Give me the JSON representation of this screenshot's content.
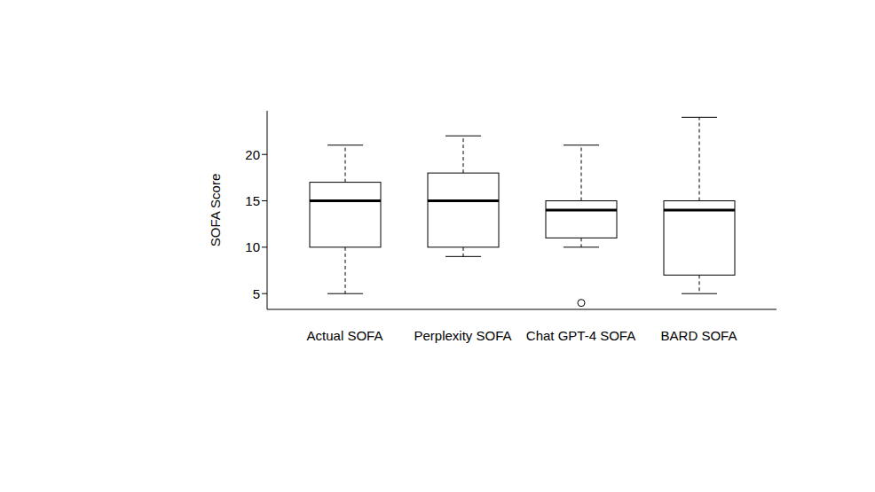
{
  "chart_data": {
    "type": "box",
    "y_label": "SOFA Score",
    "categories": [
      "Actual SOFA",
      "Perplexity SOFA",
      "Chat GPT-4 SOFA",
      "BARD SOFA"
    ],
    "min": [
      5,
      9,
      10,
      5
    ],
    "q1": [
      10,
      10,
      11,
      7
    ],
    "median": [
      15,
      15,
      14,
      14
    ],
    "q3": [
      17,
      18,
      15,
      15
    ],
    "max": [
      21,
      22,
      21,
      24
    ],
    "outliers": [
      [],
      [],
      [
        4
      ],
      []
    ],
    "ylim": [
      3.3,
      24.7
    ],
    "yticks": [
      5,
      10,
      15,
      20
    ],
    "grid": false
  }
}
